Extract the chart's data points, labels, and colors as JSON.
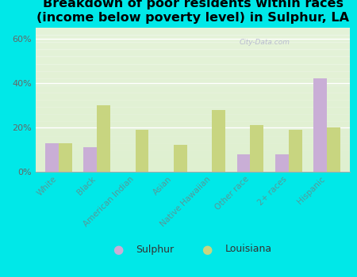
{
  "title": "Breakdown of poor residents within races\n(income below poverty level) in Sulphur, LA",
  "categories": [
    "White",
    "Black",
    "American Indian",
    "Asian",
    "Native Hawaiian",
    "Other race",
    "2+ races",
    "Hispanic"
  ],
  "sulphur_values": [
    13,
    11,
    0,
    0,
    0,
    8,
    8,
    42
  ],
  "louisiana_values": [
    13,
    30,
    19,
    12,
    28,
    21,
    19,
    20
  ],
  "sulphur_color": "#c9aed6",
  "louisiana_color": "#c8d580",
  "plot_bg_color": "#dff0d0",
  "outer_background": "#00e8e8",
  "ylim": [
    0,
    65
  ],
  "yticks": [
    0,
    20,
    40,
    60
  ],
  "ytick_labels": [
    "0%",
    "20%",
    "40%",
    "60%"
  ],
  "title_fontsize": 11.5,
  "bar_width": 0.35,
  "legend_labels": [
    "Sulphur",
    "Louisiana"
  ],
  "watermark": "City-Data.com",
  "xtick_color": "#559999",
  "ytick_color": "#666666"
}
